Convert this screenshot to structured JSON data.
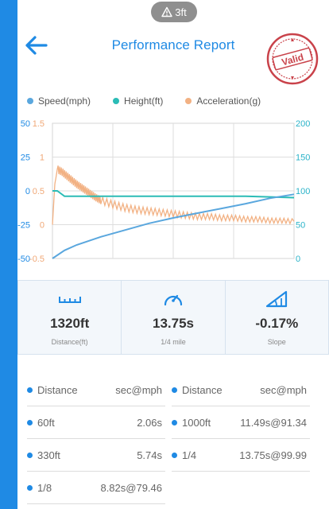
{
  "status_pill": {
    "text": "3ft"
  },
  "header": {
    "title": "Performance Report",
    "stamp_text": "Valid"
  },
  "colors": {
    "primary": "#1f8ae4",
    "speed": "#5aa7de",
    "height": "#2bbcb6",
    "acceleration": "#f2b183"
  },
  "legend": [
    {
      "label": "Speed(mph)"
    },
    {
      "label": "Height(ft)"
    },
    {
      "label": "Acceleration(g)"
    }
  ],
  "chart_data": {
    "type": "line",
    "series": [
      {
        "name": "Speed(mph)",
        "axis": "right",
        "x": [
          0,
          0.05,
          0.1,
          0.2,
          0.3,
          0.4,
          0.5,
          0.6,
          0.7,
          0.8,
          0.9,
          1.0
        ],
        "values": [
          0,
          12,
          20,
          32,
          42,
          52,
          60,
          67,
          74,
          81,
          89,
          95
        ]
      },
      {
        "name": "Height(ft)",
        "axis": "left-outer",
        "x": [
          0,
          0.02,
          0.05,
          0.2,
          0.4,
          0.6,
          0.8,
          1.0
        ],
        "values": [
          0,
          0,
          -4,
          -4,
          -4,
          -4,
          -4,
          -5
        ]
      },
      {
        "name": "Acceleration(g)",
        "axis": "left-inner",
        "x": [
          0,
          0.01,
          0.02,
          0.04,
          0.06,
          0.08,
          0.1,
          0.12,
          0.14,
          0.16,
          0.18,
          0.2,
          0.25,
          0.3,
          0.35,
          0.4,
          0.45,
          0.5,
          0.55,
          0.6,
          0.65,
          0.7,
          0.75,
          0.8,
          0.85,
          0.9,
          0.95,
          1.0
        ],
        "values": [
          0,
          0.6,
          0.82,
          0.78,
          0.72,
          0.66,
          0.6,
          0.55,
          0.5,
          0.45,
          0.4,
          0.36,
          0.3,
          0.25,
          0.22,
          0.2,
          0.18,
          0.16,
          0.14,
          0.12,
          0.12,
          0.1,
          0.1,
          0.08,
          0.08,
          0.06,
          0.06,
          0.05
        ]
      }
    ],
    "axes": {
      "left_outer": {
        "ticks": [
          "50",
          "25",
          "0",
          "-25",
          "-50"
        ],
        "range": [
          -50,
          50
        ]
      },
      "left_inner": {
        "ticks": [
          "1.5",
          "1",
          "0.5",
          "0",
          "-0.5"
        ],
        "range": [
          -0.5,
          1.5
        ]
      },
      "right": {
        "ticks": [
          "200",
          "150",
          "100",
          "50",
          "0"
        ],
        "range": [
          0,
          200
        ]
      }
    },
    "grid": true
  },
  "stats": [
    {
      "icon": "ruler-icon",
      "value": "1320ft",
      "label": "Distance(ft)"
    },
    {
      "icon": "speedometer-icon",
      "value": "13.75s",
      "label": "1/4 mile"
    },
    {
      "icon": "slope-icon",
      "value": "-0.17%",
      "label": "Slope"
    }
  ],
  "table": {
    "header": {
      "left_key": "Distance",
      "left_val": "sec@mph",
      "right_key": "Distance",
      "right_val": "sec@mph"
    },
    "rows": [
      {
        "left_key": "60ft",
        "left_val": "2.06s",
        "right_key": "1000ft",
        "right_val": "11.49s@91.34"
      },
      {
        "left_key": "330ft",
        "left_val": "5.74s",
        "right_key": "1/4",
        "right_val": "13.75s@99.99"
      },
      {
        "left_key": "1/8",
        "left_val": "8.82s@79.46",
        "right_key": "",
        "right_val": ""
      }
    ]
  }
}
